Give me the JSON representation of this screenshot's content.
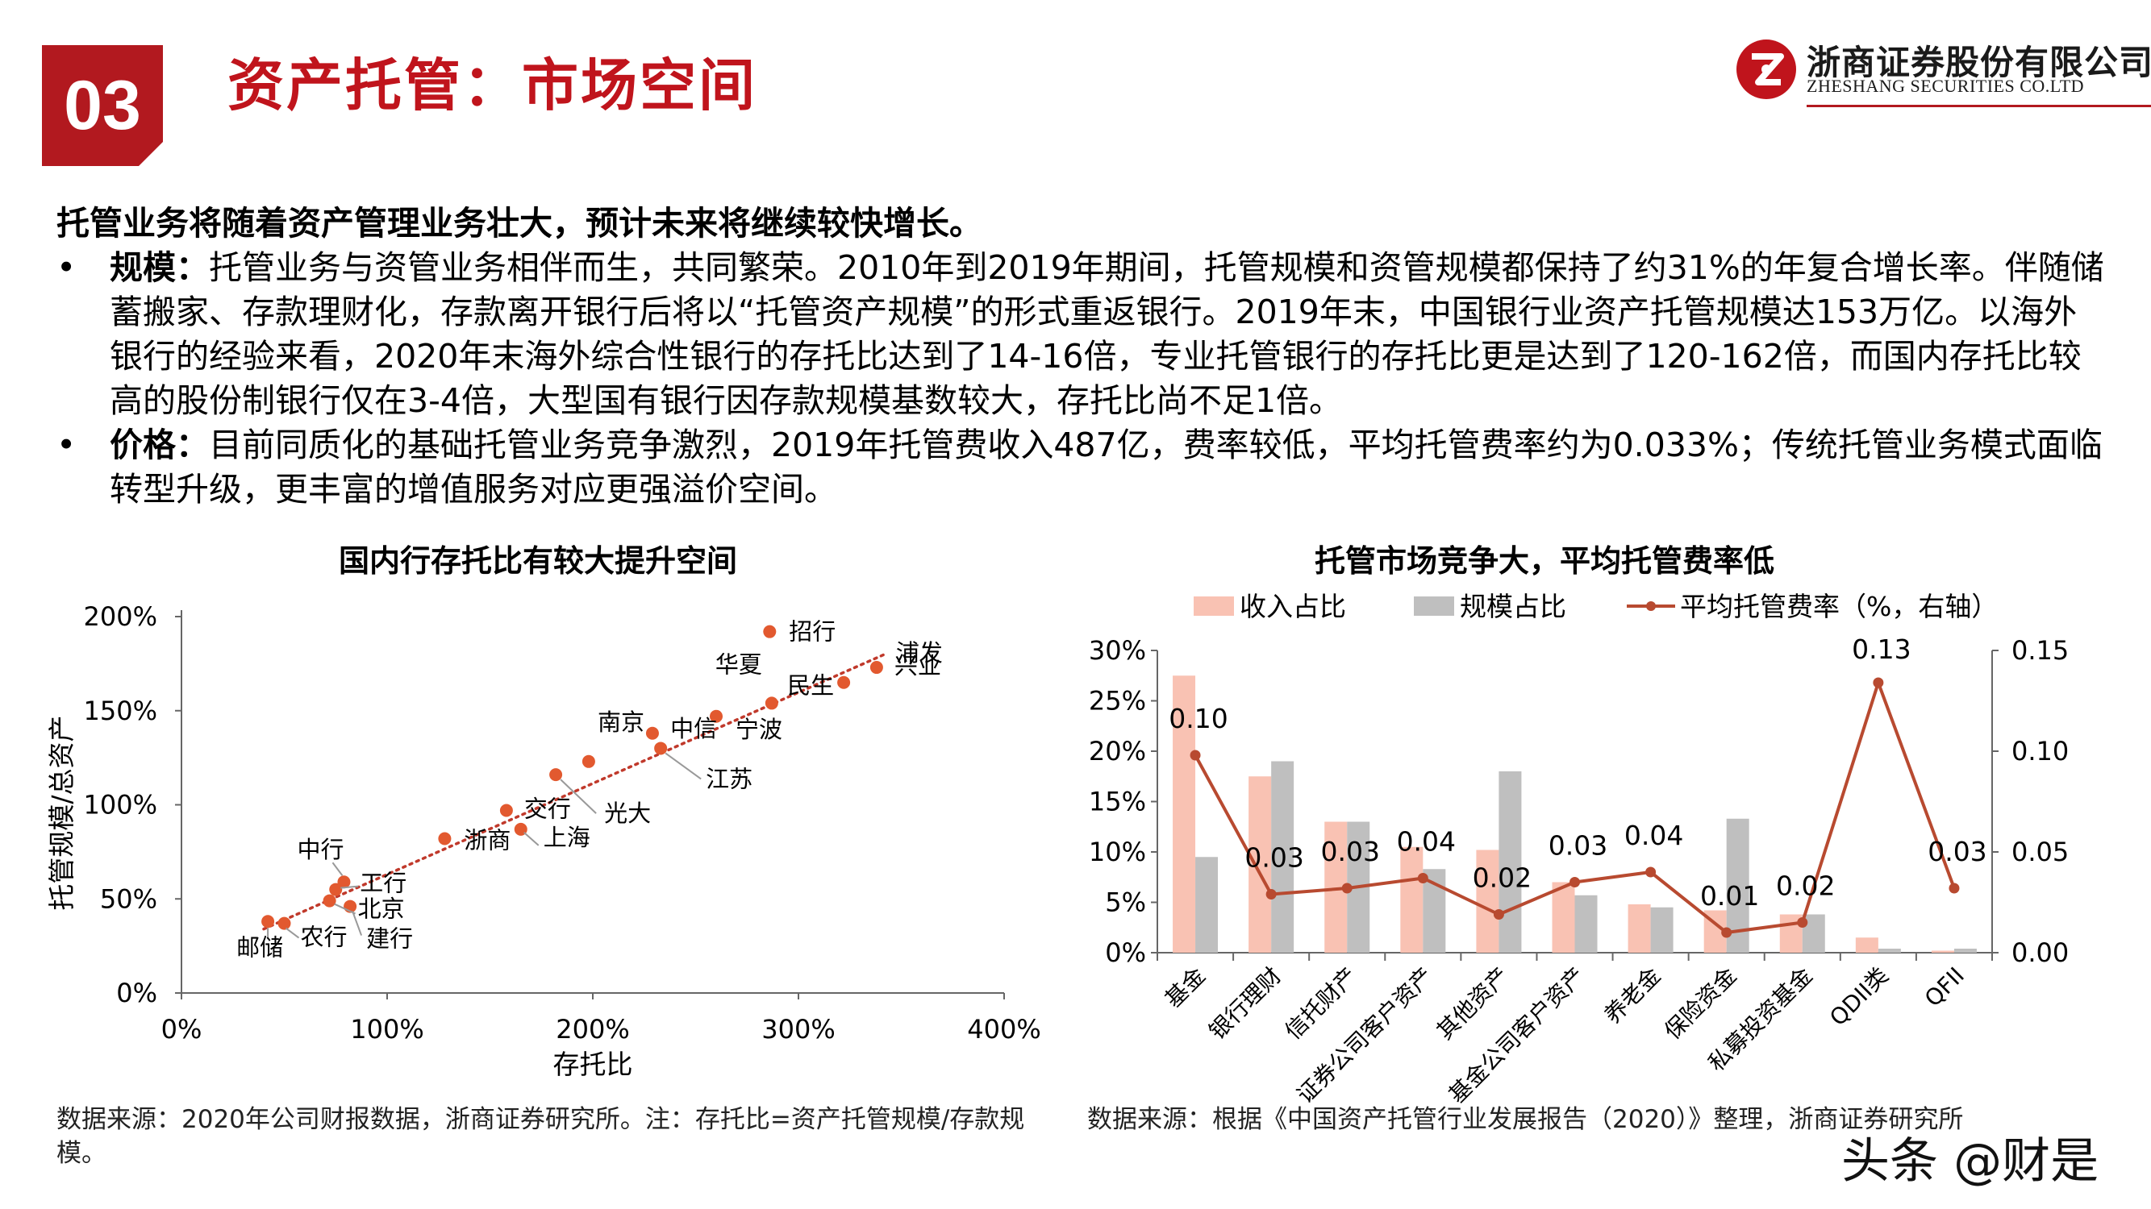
{
  "header": {
    "section_number": "03",
    "title": "资产托管：市场空间",
    "logo_cn": "浙商证券股份有限公司",
    "logo_en": "ZHESHANG SECURITIES CO.LTD"
  },
  "body": {
    "lead": "托管业务将随着资产管理业务壮大，预计未来将继续较快增长。",
    "bullet_symbol": "•",
    "bullets": [
      {
        "label": "规模：",
        "text": "托管业务与资管业务相伴而生，共同繁荣。2010年到2019年期间，托管规模和资管规模都保持了约31%的年复合增长率。伴随储蓄搬家、存款理财化，存款离开银行后将以“托管资产规模”的形式重返银行。2019年末，中国银行业资产托管规模达153万亿。以海外银行的经验来看，2020年末海外综合性银行的存托比达到了14-16倍，专业托管银行的存托比更是达到了120-162倍，而国内存托比较高的股份制银行仅在3-4倍，大型国有银行因存款规模基数较大，存托比尚不足1倍。"
      },
      {
        "label": "价格：",
        "text": "目前同质化的基础托管业务竞争激烈，2019年托管费收入487亿，费率较低，平均托管费率约为0.033%；传统托管业务模式面临转型升级，更丰富的增值服务对应更强溢价空间。"
      }
    ]
  },
  "chart_data": [
    {
      "type": "scatter",
      "title": "国内行存托比有较大提升空间",
      "xlabel": "存托比",
      "ylabel": "托管规模/总资产",
      "xlim": [
        0,
        400
      ],
      "ylim": [
        0,
        200
      ],
      "x_ticks": [
        "0%",
        "100%",
        "200%",
        "300%",
        "400%"
      ],
      "y_ticks": [
        "0%",
        "50%",
        "100%",
        "150%",
        "200%"
      ],
      "trendline": "dotted linear",
      "points": [
        {
          "name": "邮储",
          "x": 42,
          "y": 38
        },
        {
          "name": "农行",
          "x": 50,
          "y": 37
        },
        {
          "name": "建行",
          "x": 82,
          "y": 46
        },
        {
          "name": "北京",
          "x": 72,
          "y": 49
        },
        {
          "name": "工行",
          "x": 75,
          "y": 55
        },
        {
          "name": "中行",
          "x": 79,
          "y": 59
        },
        {
          "name": "浙商",
          "x": 128,
          "y": 82
        },
        {
          "name": "上海",
          "x": 165,
          "y": 87
        },
        {
          "name": "交行",
          "x": 158,
          "y": 97
        },
        {
          "name": "光大",
          "x": 182,
          "y": 116
        },
        {
          "name": "",
          "x": 198,
          "y": 123
        },
        {
          "name": "江苏",
          "x": 233,
          "y": 130
        },
        {
          "name": "南京",
          "x": 229,
          "y": 138
        },
        {
          "name": "宁波",
          "x": 260,
          "y": 147
        },
        {
          "name": "华夏",
          "x": 287,
          "y": 154
        },
        {
          "name": "民生",
          "x": 322,
          "y": 165
        },
        {
          "name": "兴业",
          "x": 338,
          "y": 173
        },
        {
          "name": "招行",
          "x": 286,
          "y": 192
        }
      ],
      "extra_labels": [
        "中信",
        "浦发"
      ]
    },
    {
      "type": "bar+line",
      "title": "托管市场竞争大，平均托管费率低",
      "categories": [
        "基金",
        "银行理财",
        "信托财产",
        "证券公司客户资产",
        "其他资产",
        "基金公司客户资产",
        "养老金",
        "保险资金",
        "私募投资基金",
        "QDII类",
        "QFII"
      ],
      "series": [
        {
          "name": "收入占比",
          "type": "bar",
          "axis": "left",
          "color": "#f9c2b3",
          "values": [
            27.5,
            17.5,
            13,
            10.5,
            10.2,
            7,
            4.8,
            4.2,
            3.8,
            1.5,
            0.2
          ]
        },
        {
          "name": "规模占比",
          "type": "bar",
          "axis": "left",
          "color": "#bfbfbf",
          "values": [
            9.5,
            19,
            13,
            8.3,
            18,
            5.7,
            4.5,
            13.3,
            3.8,
            0.4,
            0.4
          ]
        },
        {
          "name": "平均托管费率（%，右轴）",
          "type": "line",
          "axis": "right",
          "color": "#b84a30",
          "values": [
            0.098,
            0.029,
            0.032,
            0.037,
            0.019,
            0.035,
            0.04,
            0.01,
            0.015,
            0.134,
            0.032
          ],
          "data_labels": [
            "0.10",
            "0.03",
            "0.03",
            "0.04",
            "0.02",
            "0.03",
            "0.04",
            "0.01",
            "0.02",
            "0.13",
            "0.03"
          ]
        }
      ],
      "ylim_left": [
        0,
        30
      ],
      "ylim_right": [
        0,
        0.15
      ],
      "left_ticks": [
        "0%",
        "5%",
        "10%",
        "15%",
        "20%",
        "25%",
        "30%"
      ],
      "right_ticks": [
        "0.00",
        "0.05",
        "0.10",
        "0.15"
      ],
      "legend_position": "top"
    }
  ],
  "sources": {
    "left": "数据来源：2020年公司财报数据，浙商证券研究所。注：存托比=资产托管规模/存款规模。",
    "right": "数据来源：根据《中国资产托管行业发展报告（2020）》整理，浙商证券研究所"
  },
  "watermark": "头条 @财是"
}
